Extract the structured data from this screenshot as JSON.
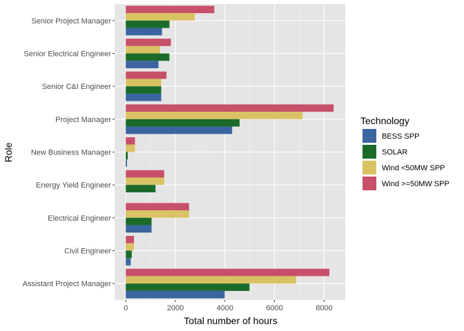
{
  "chart_data": {
    "type": "bar",
    "orientation": "horizontal",
    "grouped": true,
    "title": "",
    "xlabel": "Total number of hours",
    "ylabel": "Role",
    "xlim": [
      -450,
      8850
    ],
    "xticks": [
      0,
      2000,
      4000,
      6000,
      8000
    ],
    "xtick_labels": [
      "0",
      "2000",
      "4000",
      "6000",
      "8000"
    ],
    "grid": true,
    "background": "#e5e5e5",
    "categories": [
      "Senior Project Manager",
      "Senior Electrical Engineer",
      "Senior C&I Engineer",
      "Project Manager",
      "New Business Manager",
      "Energy Yield Engineer",
      "Electrical Engineer",
      "Civil Engineer",
      "Assistant Project Manager"
    ],
    "legend": {
      "title": "Technology",
      "position": "right"
    },
    "series": [
      {
        "name": "BESS SPP",
        "color": "#3a65a0",
        "values": [
          1460,
          1320,
          1430,
          4290,
          50,
          0,
          1040,
          200,
          3990
        ]
      },
      {
        "name": "SOLAR",
        "color": "#1a6b2a",
        "values": [
          1760,
          1760,
          1430,
          4590,
          80,
          1200,
          1040,
          240,
          4990
        ]
      },
      {
        "name": "Wind <50MW SPP",
        "color": "#d9c264",
        "values": [
          2780,
          1380,
          1430,
          7130,
          370,
          1550,
          2550,
          330,
          6870
        ]
      },
      {
        "name": "Wind >=50MW SPP",
        "color": "#c8516a",
        "values": [
          3570,
          1820,
          1640,
          8380,
          370,
          1550,
          2550,
          330,
          8210
        ]
      }
    ]
  }
}
